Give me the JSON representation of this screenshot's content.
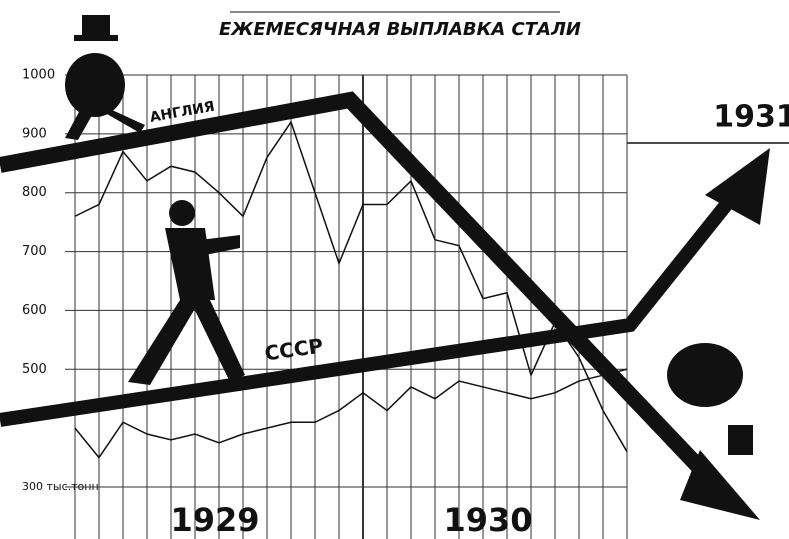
{
  "chart_data": {
    "type": "line",
    "title": "ЕЖЕМЕСЯЧНАЯ ВЫПЛАВКА СТАЛИ",
    "categories": [
      null,
      null,
      null,
      null,
      null,
      null,
      null,
      null,
      null,
      null,
      null,
      null,
      null,
      null,
      null,
      null,
      null,
      null,
      null,
      null,
      null,
      null,
      null,
      null
    ],
    "series": [
      {
        "name": "АНГЛИЯ",
        "color": "#111111",
        "values": [
          760,
          780,
          870,
          820,
          845,
          835,
          800,
          760,
          860,
          920,
          800,
          680,
          780,
          780,
          820,
          720,
          710,
          620,
          630,
          490,
          580,
          520,
          430,
          360
        ]
      },
      {
        "name": "СССР",
        "color": "#111111",
        "values": [
          400,
          350,
          410,
          390,
          380,
          390,
          375,
          390,
          400,
          410,
          410,
          430,
          460,
          430,
          470,
          450,
          480,
          470,
          460,
          450,
          460,
          480,
          490,
          500
        ]
      }
    ],
    "ylim": [
      300,
      1000
    ],
    "yticks": [
      {
        "value": 300,
        "label": "300 тыс.тонн"
      },
      500,
      600,
      700,
      800,
      900,
      1000
    ],
    "grid": true,
    "annotations": [
      "1929",
      "1930",
      "1931"
    ]
  }
}
